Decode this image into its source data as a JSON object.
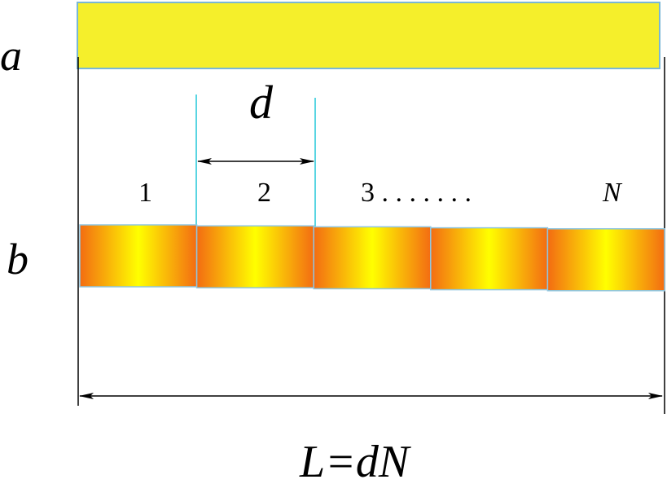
{
  "labels": {
    "row_a": "a",
    "row_b": "b",
    "period": "d",
    "formula": "L=dN"
  },
  "segments": [
    {
      "label": "1",
      "italic": false
    },
    {
      "label": "2",
      "italic": false
    },
    {
      "label": "3 . . . . . . .",
      "italic": false
    },
    {
      "label": "",
      "italic": false
    },
    {
      "label": "N",
      "italic": true
    }
  ],
  "colors": {
    "bar_a_fill": "#f5ef2b",
    "bar_a_stroke": "#79b7d6",
    "segment_edge": "#f36c12",
    "segment_center": "#ffff00",
    "period_marker": "#22c7d8",
    "line": "#000000"
  }
}
